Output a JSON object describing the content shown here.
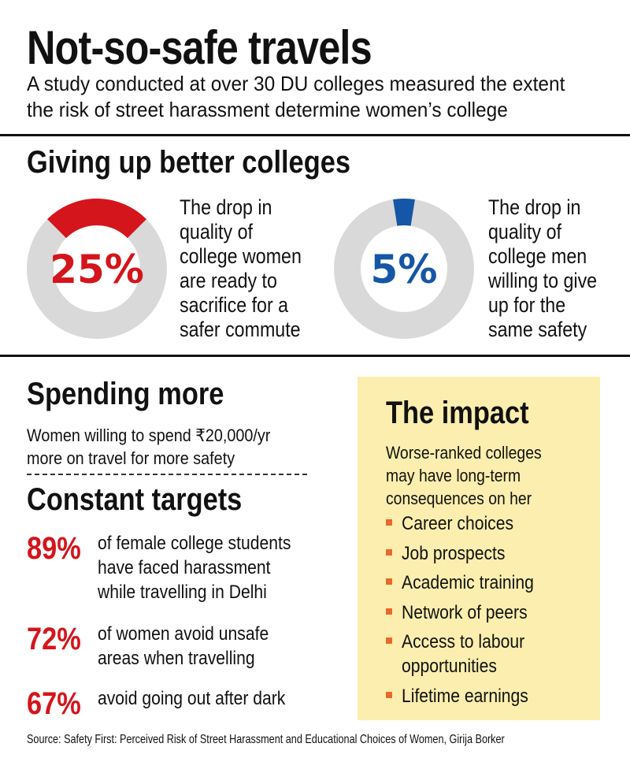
{
  "title": "Not-so-safe travels",
  "subtitle_lines": [
    "A study conducted at over 30 DU colleges measured the extent",
    "the risk of street harassment determine women’s college"
  ],
  "giving": {
    "heading": "Giving up better colleges",
    "women": {
      "pct_label": "25%",
      "desc_lines": [
        "The drop in",
        "quality of",
        "college women",
        "are ready to",
        "sacrifice for a",
        "safer commute"
      ]
    },
    "men": {
      "pct_label": "5%",
      "desc_lines": [
        "The drop in",
        "quality of",
        "college men",
        "willing to give",
        "up for the",
        "same safety"
      ]
    }
  },
  "spending": {
    "heading": "Spending more",
    "desc_lines": [
      "Women willing to spend ₹20,000/yr",
      "more on travel for more safety"
    ]
  },
  "targets": {
    "heading": "Constant targets",
    "items": [
      {
        "pct": "89%",
        "lines": [
          "of female college students",
          "have faced harassment",
          "while travelling in Delhi"
        ]
      },
      {
        "pct": "72%",
        "lines": [
          "of women avoid unsafe",
          "areas when travelling"
        ]
      },
      {
        "pct": "67%",
        "lines": [
          "avoid going out after dark"
        ]
      }
    ]
  },
  "impact": {
    "heading": "The impact",
    "desc_lines": [
      "Worse-ranked colleges",
      "may have long-term",
      "consequences on her"
    ],
    "bullets": [
      [
        "Career choices"
      ],
      [
        "Job prospects"
      ],
      [
        "Academic training"
      ],
      [
        "Network of peers"
      ],
      [
        "Access to labour",
        "opportunities"
      ],
      [
        "Lifetime earnings"
      ]
    ]
  },
  "source": "Source: Safety First: Perceived Risk of Street Harassment and Educational Choices of Women, Girija Borker",
  "colors": {
    "women": "#d4151c",
    "men": "#1556a6",
    "ring": "#d9d9d9",
    "box": "#fbeeae",
    "bullet": "#e8692b"
  },
  "chart_data": [
    {
      "type": "pie",
      "values": [
        25,
        75
      ],
      "categories": [
        "women",
        "rest"
      ],
      "title": ""
    },
    {
      "type": "pie",
      "values": [
        5,
        95
      ],
      "categories": [
        "men",
        "rest"
      ],
      "title": ""
    }
  ]
}
